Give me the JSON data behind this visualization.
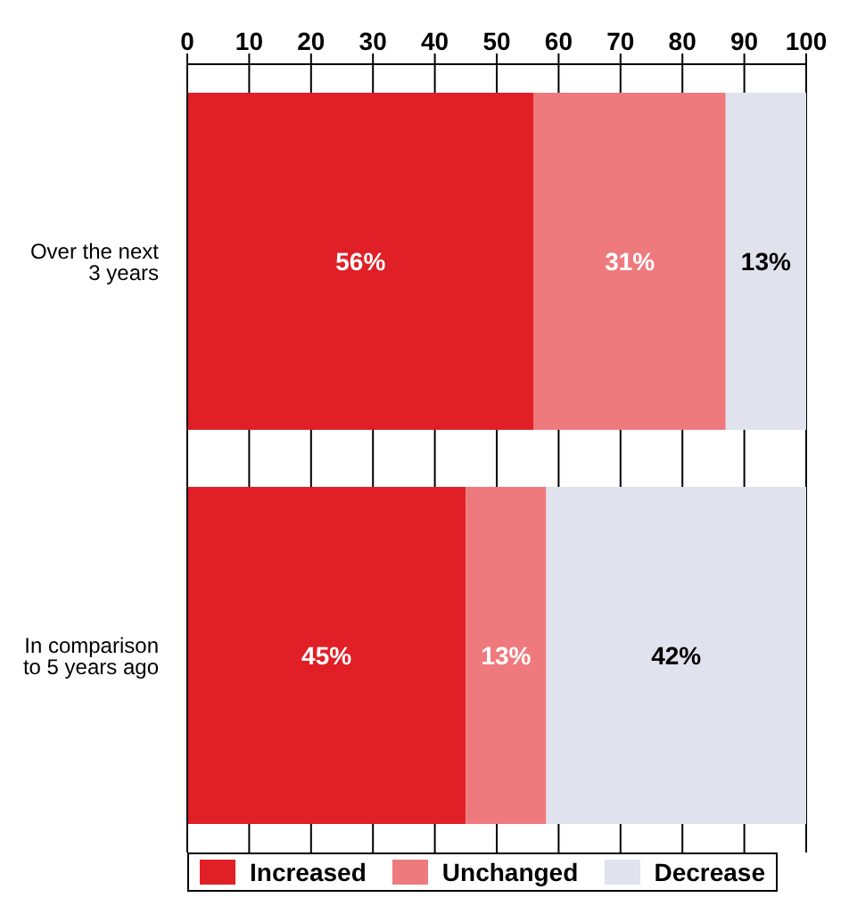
{
  "chart_data": {
    "type": "bar",
    "orientation": "horizontal",
    "stacked": true,
    "categories": [
      "Over the next 3 years",
      "In comparison to 5 years ago"
    ],
    "series": [
      {
        "name": "Increased",
        "color": "#e01f26",
        "values": [
          56,
          45
        ],
        "value_labels": [
          "56%",
          "45%"
        ]
      },
      {
        "name": "Unchanged",
        "color": "#ef7a7d",
        "values": [
          31,
          13
        ],
        "value_labels": [
          "31%",
          "13%"
        ]
      },
      {
        "name": "Decrease",
        "color": "#e0e2ed",
        "values": [
          13,
          42
        ],
        "value_labels": [
          "13%",
          "42%"
        ]
      }
    ],
    "xlim": [
      0,
      100
    ],
    "xticks": [
      0,
      10,
      20,
      30,
      40,
      50,
      60,
      70,
      80,
      90,
      100
    ],
    "grid": "x",
    "legend": "bottom"
  }
}
